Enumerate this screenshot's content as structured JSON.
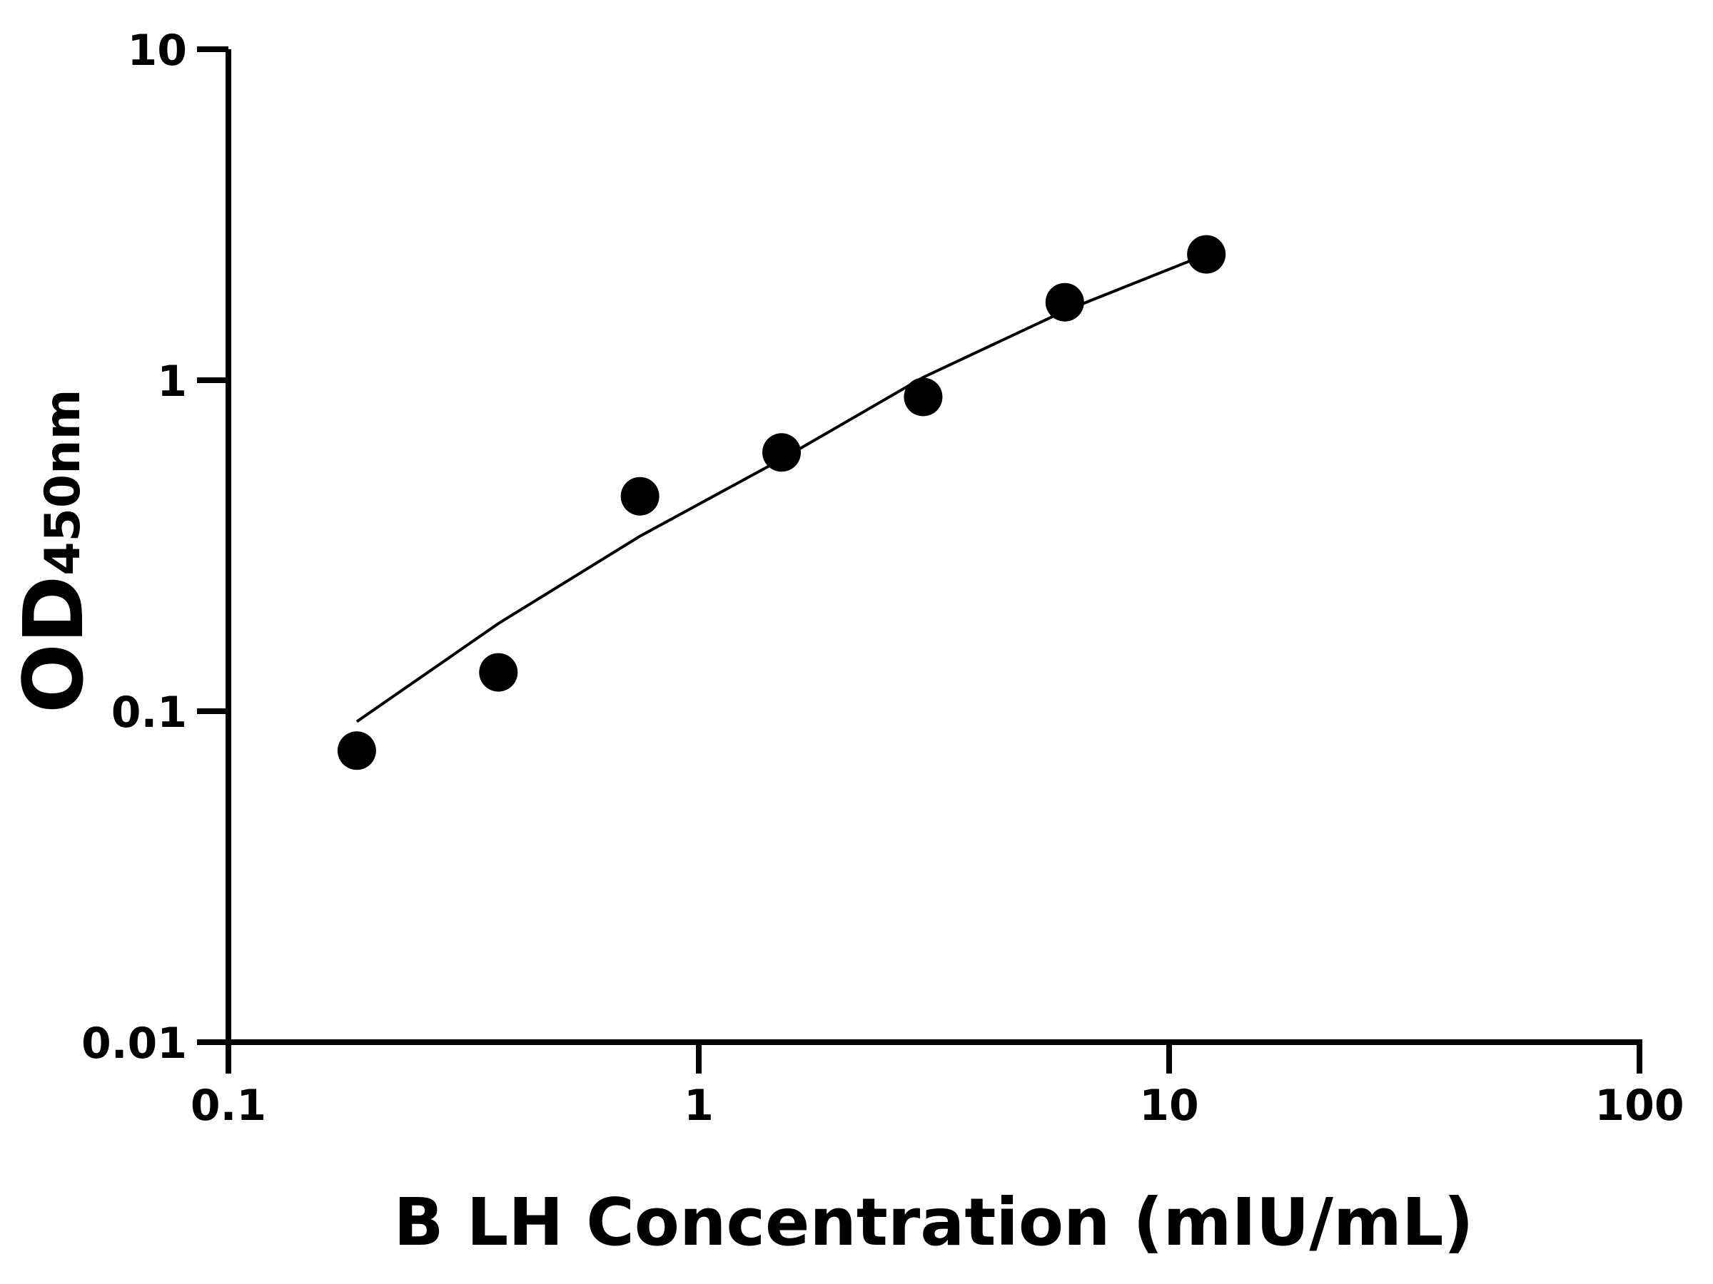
{
  "chart_data": {
    "type": "scatter",
    "title": "",
    "xlabel": "B LH Concentration (mIU/mL)",
    "ylabel_main": "OD",
    "ylabel_sub": "450nm",
    "x_scale": "log",
    "y_scale": "log",
    "xlim": [
      0.1,
      100
    ],
    "ylim": [
      0.01,
      10
    ],
    "x_ticks": [
      0.1,
      1,
      10,
      100
    ],
    "x_tick_labels": [
      "0.1",
      "1",
      "10",
      "100"
    ],
    "y_ticks": [
      0.01,
      0.1,
      1,
      10
    ],
    "y_tick_labels": [
      "0.01",
      "0.1",
      "1",
      "10"
    ],
    "grid": false,
    "legend": "none",
    "series": [
      {
        "x": [
          0.1875,
          0.375,
          0.75,
          1.5,
          3,
          6,
          12
        ],
        "y": [
          0.076,
          0.131,
          0.446,
          0.605,
          0.89,
          1.72,
          2.4
        ],
        "marker": "circle",
        "color": "#000000"
      }
    ],
    "fit_curve": {
      "x": [
        0.1875,
        0.375,
        0.75,
        1.5,
        3,
        6,
        12
      ],
      "y": [
        0.093,
        0.184,
        0.338,
        0.577,
        1.02,
        1.62,
        2.4
      ],
      "color": "#000000"
    }
  }
}
